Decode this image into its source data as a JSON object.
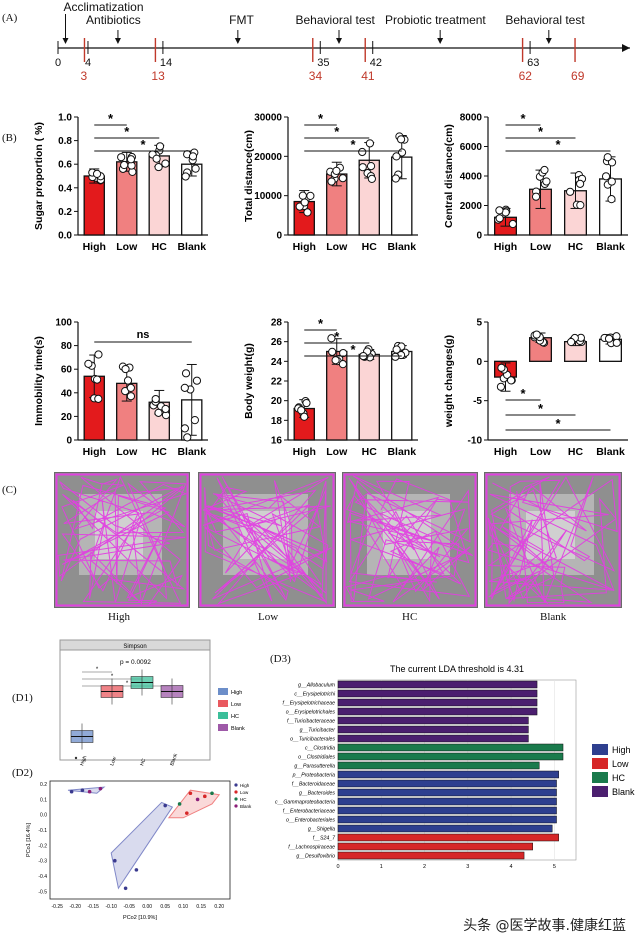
{
  "panels": {
    "A": "(A)",
    "B": "(B)",
    "C": "(C)",
    "D1": "(D1)",
    "D2": "(D2)",
    "D3": "(D3)"
  },
  "timeline": {
    "events": [
      {
        "label": "Acclimatization",
        "day": 1
      },
      {
        "label": "Antibiotics",
        "day": 8
      },
      {
        "label": "FMT",
        "day": 24
      },
      {
        "label": "Behavioral test",
        "day": 37.5
      },
      {
        "label": "Probiotic treatment",
        "day": 51
      },
      {
        "label": "Behavioral test",
        "day": 65.5
      }
    ],
    "black_ticks": [
      0,
      4,
      14,
      35,
      42,
      63
    ],
    "red_ticks": [
      3,
      13,
      34,
      41,
      62,
      69
    ],
    "colors": {
      "black": "#111111",
      "red": "#c0392b"
    }
  },
  "bar_groups": [
    "High",
    "Low",
    "HC",
    "Blank"
  ],
  "group_colors": {
    "High": "#e31a1c",
    "Low": "#f08080",
    "HC": "#fbd5d5",
    "Blank": "#ffffff"
  },
  "chart_data": [
    {
      "type": "bar",
      "ylabel": "Sugar proportion ( %)",
      "categories": [
        "High",
        "Low",
        "HC",
        "Blank"
      ],
      "values": [
        0.5,
        0.62,
        0.67,
        0.6
      ],
      "errors": [
        0.06,
        0.08,
        0.09,
        0.1
      ],
      "ylim": [
        0,
        1.0
      ],
      "yticks": [
        "0.0",
        "0.2",
        "0.4",
        "0.6",
        "0.8",
        "1.0"
      ],
      "sig": [
        "*",
        "*",
        "*"
      ]
    },
    {
      "type": "bar",
      "ylabel": "Total distance(cm)",
      "categories": [
        "High",
        "Low",
        "HC",
        "Blank"
      ],
      "values": [
        8500,
        15500,
        19000,
        19800
      ],
      "errors": [
        2800,
        3000,
        4500,
        5500
      ],
      "ylim": [
        0,
        30000
      ],
      "yticks": [
        "0",
        "10000",
        "20000",
        "30000"
      ],
      "sig": [
        "*",
        "*",
        "*"
      ]
    },
    {
      "type": "bar",
      "ylabel": "Central distance(cm)",
      "categories": [
        "High",
        "Low",
        "HC",
        "Blank"
      ],
      "values": [
        1200,
        3100,
        3000,
        3800
      ],
      "errors": [
        600,
        1300,
        1200,
        1500
      ],
      "ylim": [
        0,
        8000
      ],
      "yticks": [
        "0",
        "2000",
        "4000",
        "6000",
        "8000"
      ],
      "sig": [
        "*",
        "*",
        "*"
      ]
    },
    {
      "type": "bar",
      "ylabel": "Immobility time(s)",
      "categories": [
        "High",
        "Low",
        "HC",
        "Blank"
      ],
      "values": [
        54,
        48,
        32,
        34
      ],
      "errors": [
        18,
        15,
        10,
        30
      ],
      "ylim": [
        0,
        100
      ],
      "yticks": [
        "0",
        "20",
        "40",
        "60",
        "80",
        "100"
      ],
      "sig": [
        "ns"
      ]
    },
    {
      "type": "bar",
      "ylabel": "Body weight(g)",
      "categories": [
        "High",
        "Low",
        "HC",
        "Blank"
      ],
      "values": [
        19.2,
        25.0,
        24.7,
        25.0
      ],
      "errors": [
        0.9,
        1.3,
        0.5,
        0.6
      ],
      "ylim": [
        16,
        28
      ],
      "yticks": [
        "16",
        "18",
        "20",
        "22",
        "24",
        "26",
        "28"
      ],
      "sig": [
        "*",
        "*",
        "*"
      ]
    },
    {
      "type": "bar",
      "ylabel": "weight changes(g)",
      "categories": [
        "High",
        "Low",
        "HC",
        "Blank"
      ],
      "values": [
        -2.0,
        3.0,
        2.5,
        2.8
      ],
      "errors": [
        1.8,
        0.6,
        0.5,
        0.6
      ],
      "ylim": [
        -10,
        5
      ],
      "yticks": [
        "-10",
        "-5",
        "0",
        "5"
      ],
      "sig": [
        "*",
        "*",
        "*"
      ]
    },
    {
      "type": "bar",
      "title": "Simpson",
      "annotation": "p = 0.0092",
      "categories": [
        "High",
        "Low",
        "HC",
        "Blank"
      ],
      "values": [
        0.83,
        0.93,
        0.95,
        0.93
      ],
      "legend": [
        "High",
        "Low",
        "HC",
        "Blank"
      ]
    },
    {
      "type": "scatter",
      "xlabel": "PCo2 [10.9%]",
      "ylabel": "PCo1 [16.4%]",
      "xticks": [
        "-0.25",
        "-0.20",
        "-0.15",
        "-0.10",
        "-0.05",
        "0.00",
        "0.05",
        "0.10",
        "0.15",
        "0.20"
      ],
      "yticks": [
        "0.2",
        "0.1",
        "0.0",
        "-0.1",
        "-0.2",
        "-0.3",
        "-0.4",
        "-0.5"
      ],
      "legend": [
        "High",
        "Low",
        "HC",
        "Blank"
      ]
    },
    {
      "type": "bar",
      "title": "The current LDA threshold is 4.31",
      "categories": [
        "g__Allobaculum",
        "c__Erysipelotrichi",
        "f__Erysipelotrichaceae",
        "o__Erysipelotrichales",
        "f__Turicibacteraceae",
        "g__Turicibacter",
        "o__Turicibacterales",
        "c__Clostridia",
        "o__Clostridiales",
        "g__Parasutterella",
        "p__Proteobacteria",
        "f__Bacteroidaceae",
        "g__Bacteroides",
        "c__Gammaproteobacteria",
        "f__Enterobacteriaceae",
        "o__Enterobacteriales",
        "g__Shigella",
        "f__S24_7",
        "f__Lachnospiraceae",
        "g__Desulfovibrio"
      ],
      "values": [
        4.6,
        4.6,
        4.6,
        4.6,
        4.4,
        4.4,
        4.4,
        5.2,
        5.2,
        4.65,
        5.1,
        5.05,
        5.05,
        5.05,
        5.05,
        5.05,
        4.95,
        5.1,
        4.5,
        4.3
      ],
      "groups": [
        "Blank",
        "Blank",
        "Blank",
        "Blank",
        "Blank",
        "Blank",
        "Blank",
        "HC",
        "HC",
        "HC",
        "High",
        "High",
        "High",
        "High",
        "High",
        "High",
        "High",
        "Low",
        "Low",
        "Low"
      ],
      "xticks": [
        "0",
        "1",
        "2",
        "3",
        "4",
        "5"
      ],
      "xlim": [
        0,
        5.5
      ],
      "legend": [
        "High",
        "Low",
        "HC",
        "Blank"
      ]
    }
  ],
  "lda_colors": {
    "High": "#2e3f8f",
    "Low": "#d62728",
    "HC": "#1a7a4c",
    "Blank": "#4b1f6f"
  },
  "tracking": [
    {
      "label": "High"
    },
    {
      "label": "Low"
    },
    {
      "label": "HC"
    },
    {
      "label": "Blank"
    }
  ],
  "track_color": "#e040e0",
  "watermark": "头条 @医学故事.健康红蓝"
}
